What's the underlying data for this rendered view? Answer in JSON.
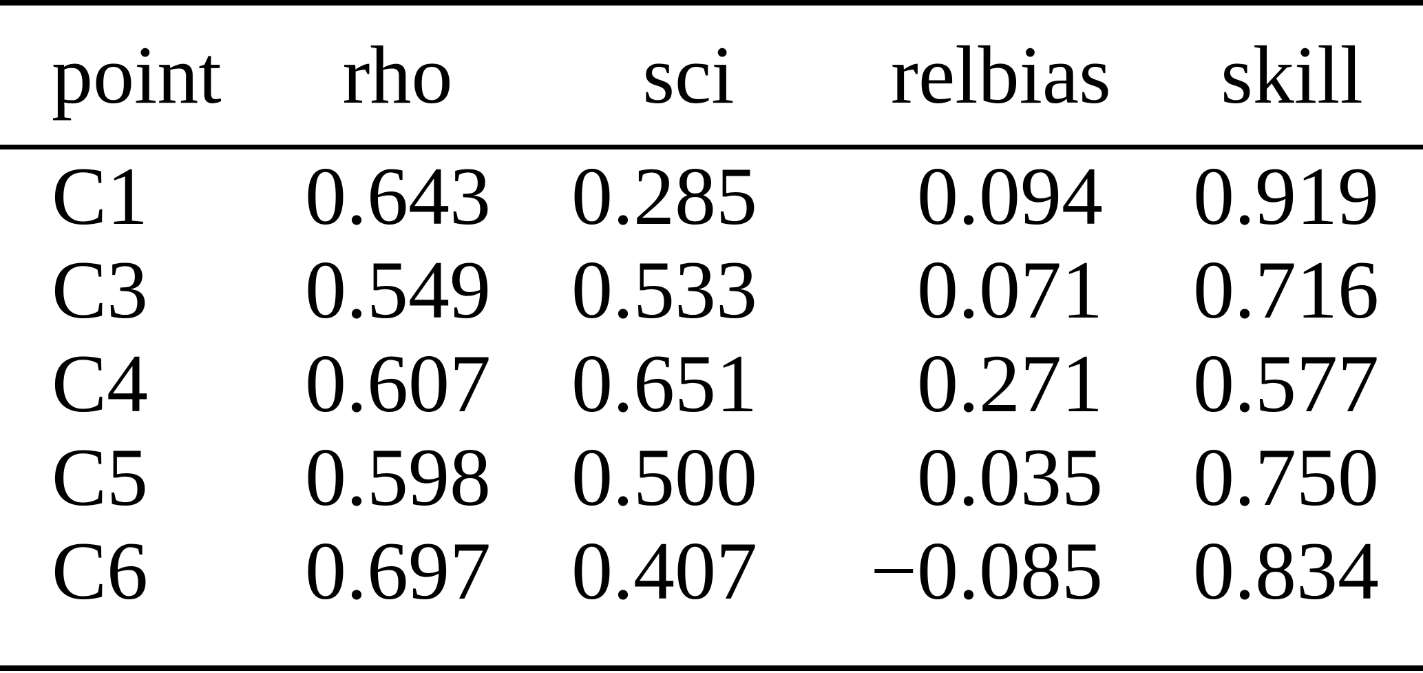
{
  "colors": {
    "text": "#000000",
    "background": "#ffffff",
    "rule": "#000000"
  },
  "table": {
    "headers": [
      {
        "key": "point",
        "label": "point"
      },
      {
        "key": "rho",
        "label": "rho"
      },
      {
        "key": "sci",
        "label": "sci"
      },
      {
        "key": "relbias",
        "label": "relbias"
      },
      {
        "key": "skill",
        "label": "skill"
      }
    ],
    "rows": [
      [
        "C1",
        "0.643",
        "0.285",
        "0.094",
        "0.919"
      ],
      [
        "C3",
        "0.549",
        "0.533",
        "0.071",
        "0.716"
      ],
      [
        "C4",
        "0.607",
        "0.651",
        "0.271",
        "0.577"
      ],
      [
        "C5",
        "0.598",
        "0.500",
        "0.035",
        "0.750"
      ],
      [
        "C6",
        "0.697",
        "0.407",
        "−0.085",
        "0.834"
      ]
    ]
  }
}
